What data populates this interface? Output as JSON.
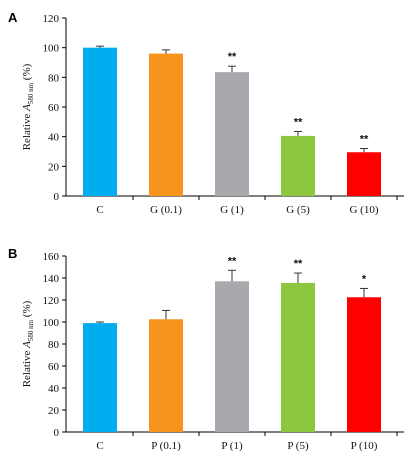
{
  "chart_data": [
    {
      "type": "bar",
      "panel": "A",
      "ylabel": "Relative A",
      "ylabel_sub": "580 nm",
      "ylabel_unit": "(%)",
      "categories": [
        "C",
        "G (0.1)",
        "G (1)",
        "G (5)",
        "G (10)"
      ],
      "values": [
        100,
        96,
        83.5,
        40.5,
        29.5
      ],
      "errors": [
        1,
        2.5,
        4,
        3,
        2.5
      ],
      "significance": [
        "",
        "",
        "**",
        "**",
        "**"
      ],
      "colors": [
        "#00AEEF",
        "#F7941D",
        "#A7A9AC",
        "#8DC63F",
        "#FF0000"
      ],
      "ylim": [
        0,
        120
      ],
      "yticks": [
        0,
        20,
        40,
        60,
        80,
        100,
        120
      ]
    },
    {
      "type": "bar",
      "panel": "B",
      "ylabel": "Relative A",
      "ylabel_sub": "580 nm",
      "ylabel_unit": "(%)",
      "categories": [
        "C",
        "P (0.1)",
        "P (1)",
        "P (5)",
        "P (10)"
      ],
      "values": [
        99,
        102.5,
        137,
        135.5,
        122.5
      ],
      "errors": [
        1,
        8,
        10,
        9,
        8
      ],
      "significance": [
        "",
        "",
        "**",
        "**",
        "*"
      ],
      "colors": [
        "#00AEEF",
        "#F7941D",
        "#A7A9AC",
        "#8DC63F",
        "#FF0000"
      ],
      "ylim": [
        0,
        160
      ],
      "yticks": [
        0,
        20,
        40,
        60,
        80,
        100,
        120,
        140,
        160
      ]
    }
  ]
}
